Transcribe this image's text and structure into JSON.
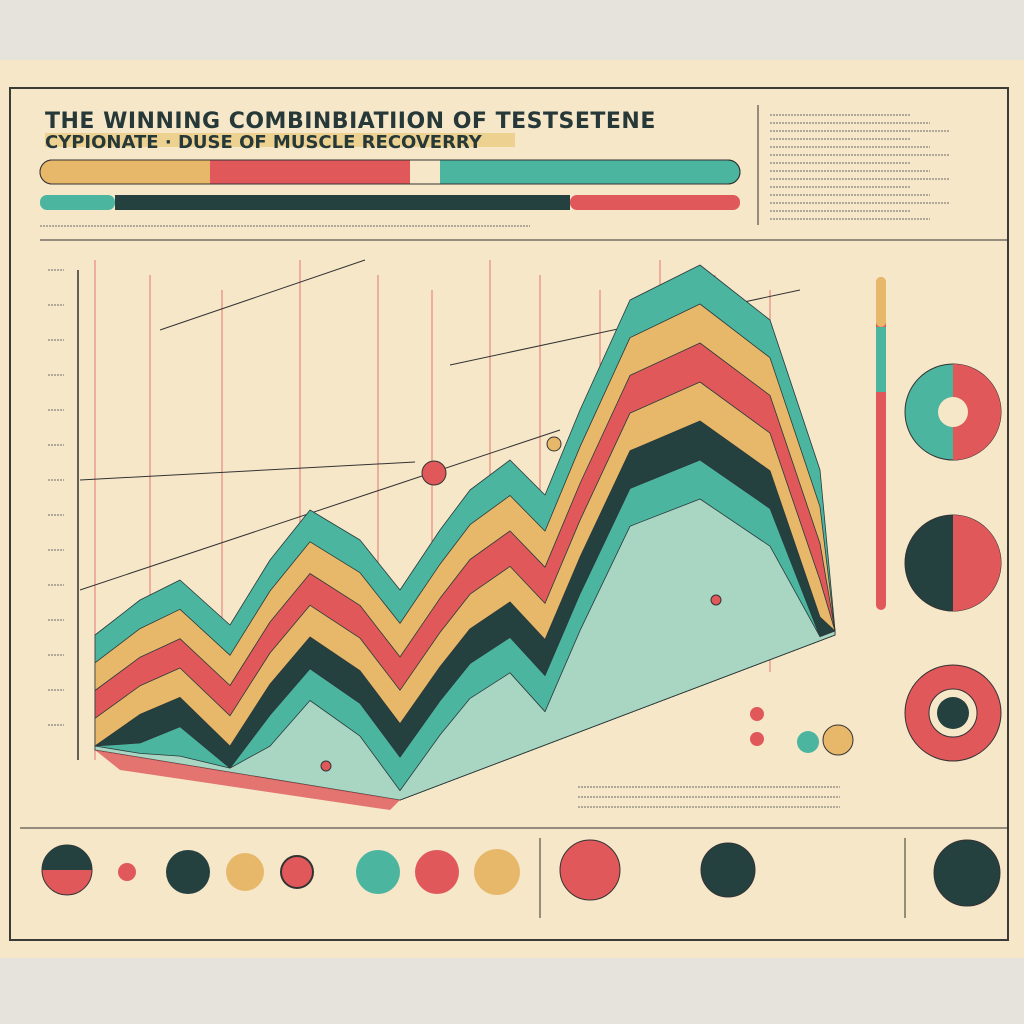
{
  "header": {
    "title": "THE WINNING COMBINBIATIION OF TESTSETENE",
    "subtitle": "CYPIONATE · DUSE OF MUSCLE RECOVERRY"
  }
}
